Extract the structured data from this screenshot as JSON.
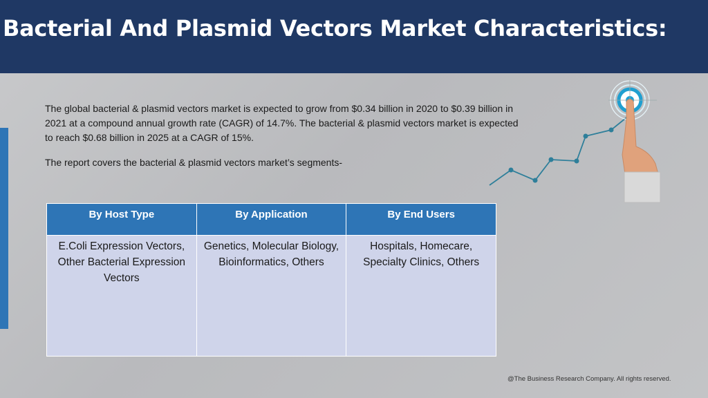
{
  "header": {
    "title": "Bacterial And Plasmid Vectors Market Characteristics:"
  },
  "intro": {
    "paragraph1": "The global bacterial & plasmid vectors market is expected to grow from $0.34 billion in 2020 to $0.39 billion in 2021 at a compound annual growth rate (CAGR) of 14.7%. The bacterial & plasmid vectors market is expected to reach $0.68 billion in 2025 at a CAGR of 15%.",
    "paragraph2": "The report covers the bacterial & plasmid vectors market’s segments-"
  },
  "segments": {
    "headers": [
      "By Host Type",
      "By Application",
      "By End Users"
    ],
    "cells": [
      "E.Coli Expression Vectors, Other Bacterial Expression Vectors",
      "Genetics, Molecular Biology, Bioinformatics, Others",
      "Hospitals, Homecare, Specialty Clinics, Others"
    ]
  },
  "footer": {
    "copyright": "@The Business Research Company. All rights reserved."
  },
  "colors": {
    "header_bg": "#1f3864",
    "accent": "#2e75b6",
    "cell_bg": "#cfd4ea"
  },
  "icons": [
    "growth-line-icon",
    "target-icon",
    "pointing-hand-icon"
  ]
}
